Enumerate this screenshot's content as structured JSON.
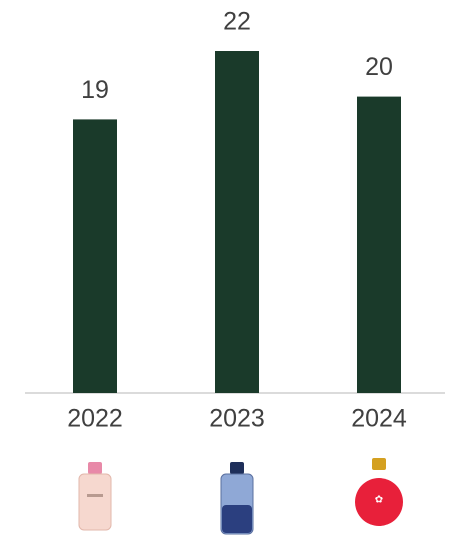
{
  "chart_data": {
    "type": "bar",
    "categories": [
      "2022",
      "2023",
      "2024"
    ],
    "values": [
      19,
      22,
      20
    ],
    "color": "#1a3a2a",
    "ylim": [
      7,
      22
    ]
  }
}
